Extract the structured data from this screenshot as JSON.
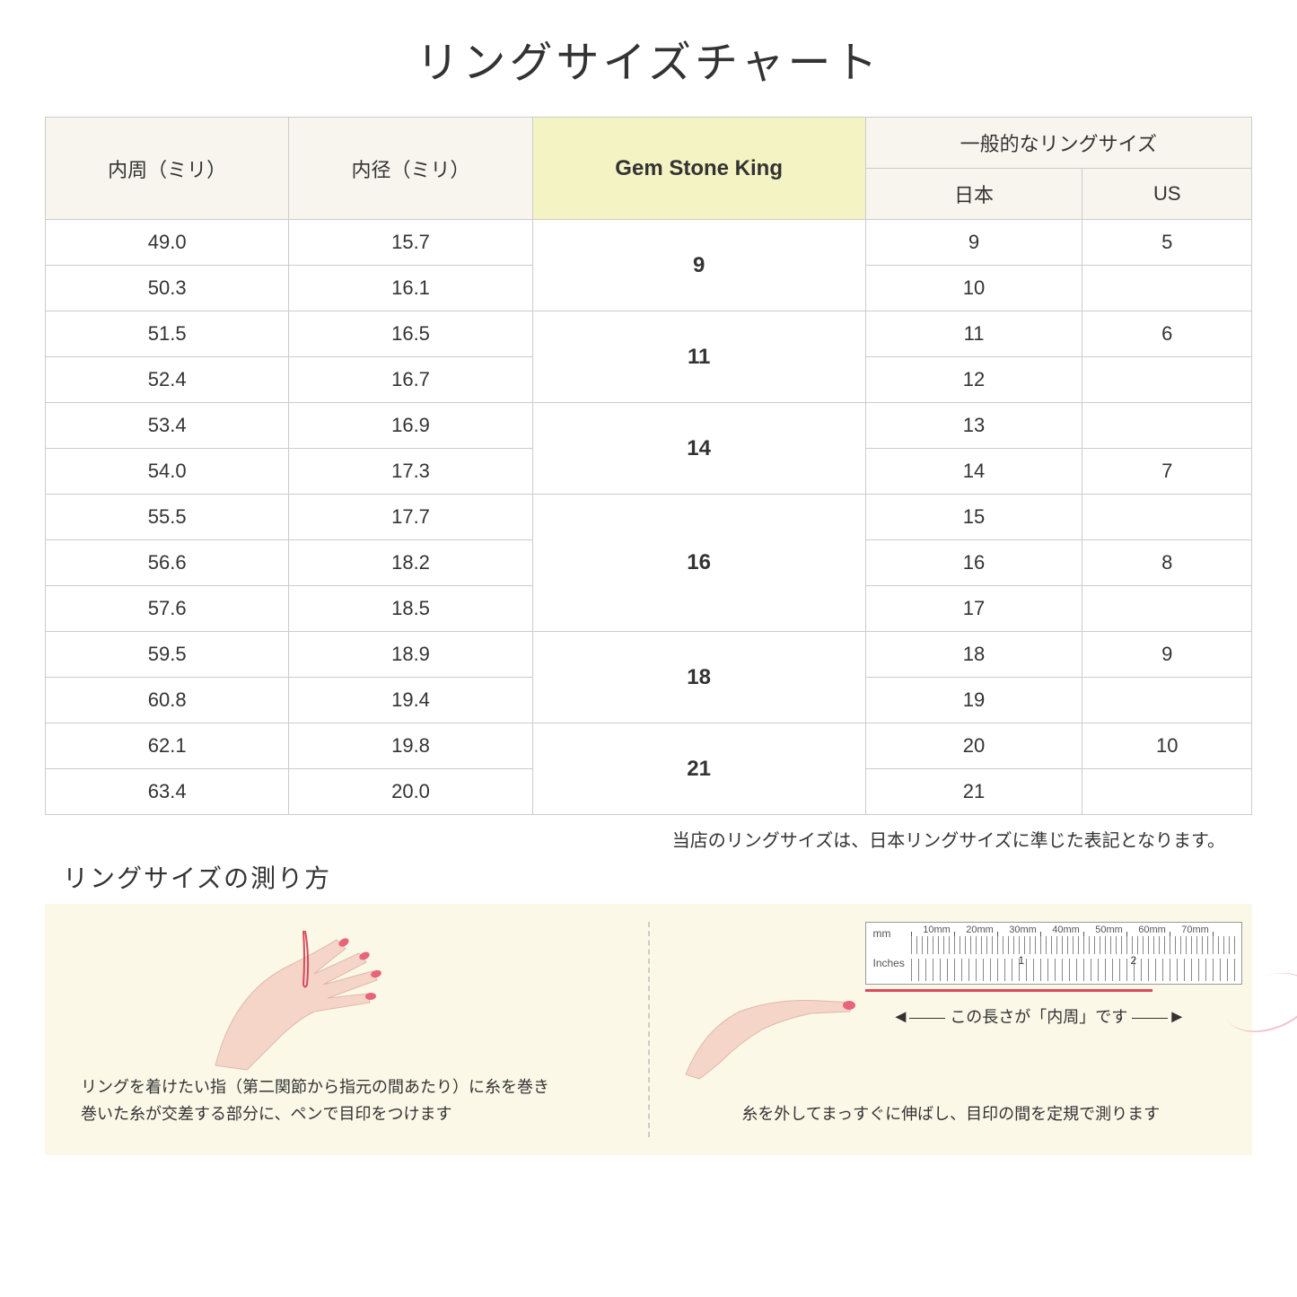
{
  "title": "リングサイズチャート",
  "headers": {
    "circumference": "内周（ミリ）",
    "diameter": "内径（ミリ）",
    "gem": "Gem Stone King",
    "general": "一般的なリングサイズ",
    "jp": "日本",
    "us": "US"
  },
  "groups": [
    {
      "gem": "9",
      "rows": [
        {
          "c": "49.0",
          "d": "15.7",
          "jp": "9",
          "us": "5"
        },
        {
          "c": "50.3",
          "d": "16.1",
          "jp": "10",
          "us": ""
        }
      ]
    },
    {
      "gem": "11",
      "rows": [
        {
          "c": "51.5",
          "d": "16.5",
          "jp": "11",
          "us": "6"
        },
        {
          "c": "52.4",
          "d": "16.7",
          "jp": "12",
          "us": ""
        }
      ]
    },
    {
      "gem": "14",
      "rows": [
        {
          "c": "53.4",
          "d": "16.9",
          "jp": "13",
          "us": ""
        },
        {
          "c": "54.0",
          "d": "17.3",
          "jp": "14",
          "us": "7"
        }
      ]
    },
    {
      "gem": "16",
      "rows": [
        {
          "c": "55.5",
          "d": "17.7",
          "jp": "15",
          "us": ""
        },
        {
          "c": "56.6",
          "d": "18.2",
          "jp": "16",
          "us": "8"
        },
        {
          "c": "57.6",
          "d": "18.5",
          "jp": "17",
          "us": ""
        }
      ]
    },
    {
      "gem": "18",
      "rows": [
        {
          "c": "59.5",
          "d": "18.9",
          "jp": "18",
          "us": "9"
        },
        {
          "c": "60.8",
          "d": "19.4",
          "jp": "19",
          "us": ""
        }
      ]
    },
    {
      "gem": "21",
      "rows": [
        {
          "c": "62.1",
          "d": "19.8",
          "jp": "20",
          "us": "10"
        },
        {
          "c": "63.4",
          "d": "20.0",
          "jp": "21",
          "us": ""
        }
      ]
    }
  ],
  "note": "当店のリングサイズは、日本リングサイズに準じた表記となります。",
  "howto_title": "リングサイズの測り方",
  "panel1_line1": "リングを着けたい指（第二関節から指元の間あたり）に糸を巻き",
  "panel1_line2": "巻いた糸が交差する部分に、ペンで目印をつけます",
  "panel2_arrow": "この長さが「内周」です",
  "panel2_text": "糸を外してまっすぐに伸ばし、目印の間を定規で測ります",
  "ruler_mm": "mm",
  "ruler_in": "Inches",
  "ruler_mm_labels": [
    "10mm",
    "20mm",
    "30mm",
    "40mm",
    "50mm",
    "60mm",
    "70mm"
  ],
  "ruler_in_1": "1",
  "ruler_in_2": "2",
  "colors": {
    "header_bg": "#f7f5ed",
    "gem_bg": "#f4f3c3",
    "panel_bg": "#fbf8e8",
    "red": "#d94a5a",
    "skin": "#f5d5c8",
    "nail": "#e8647a"
  }
}
